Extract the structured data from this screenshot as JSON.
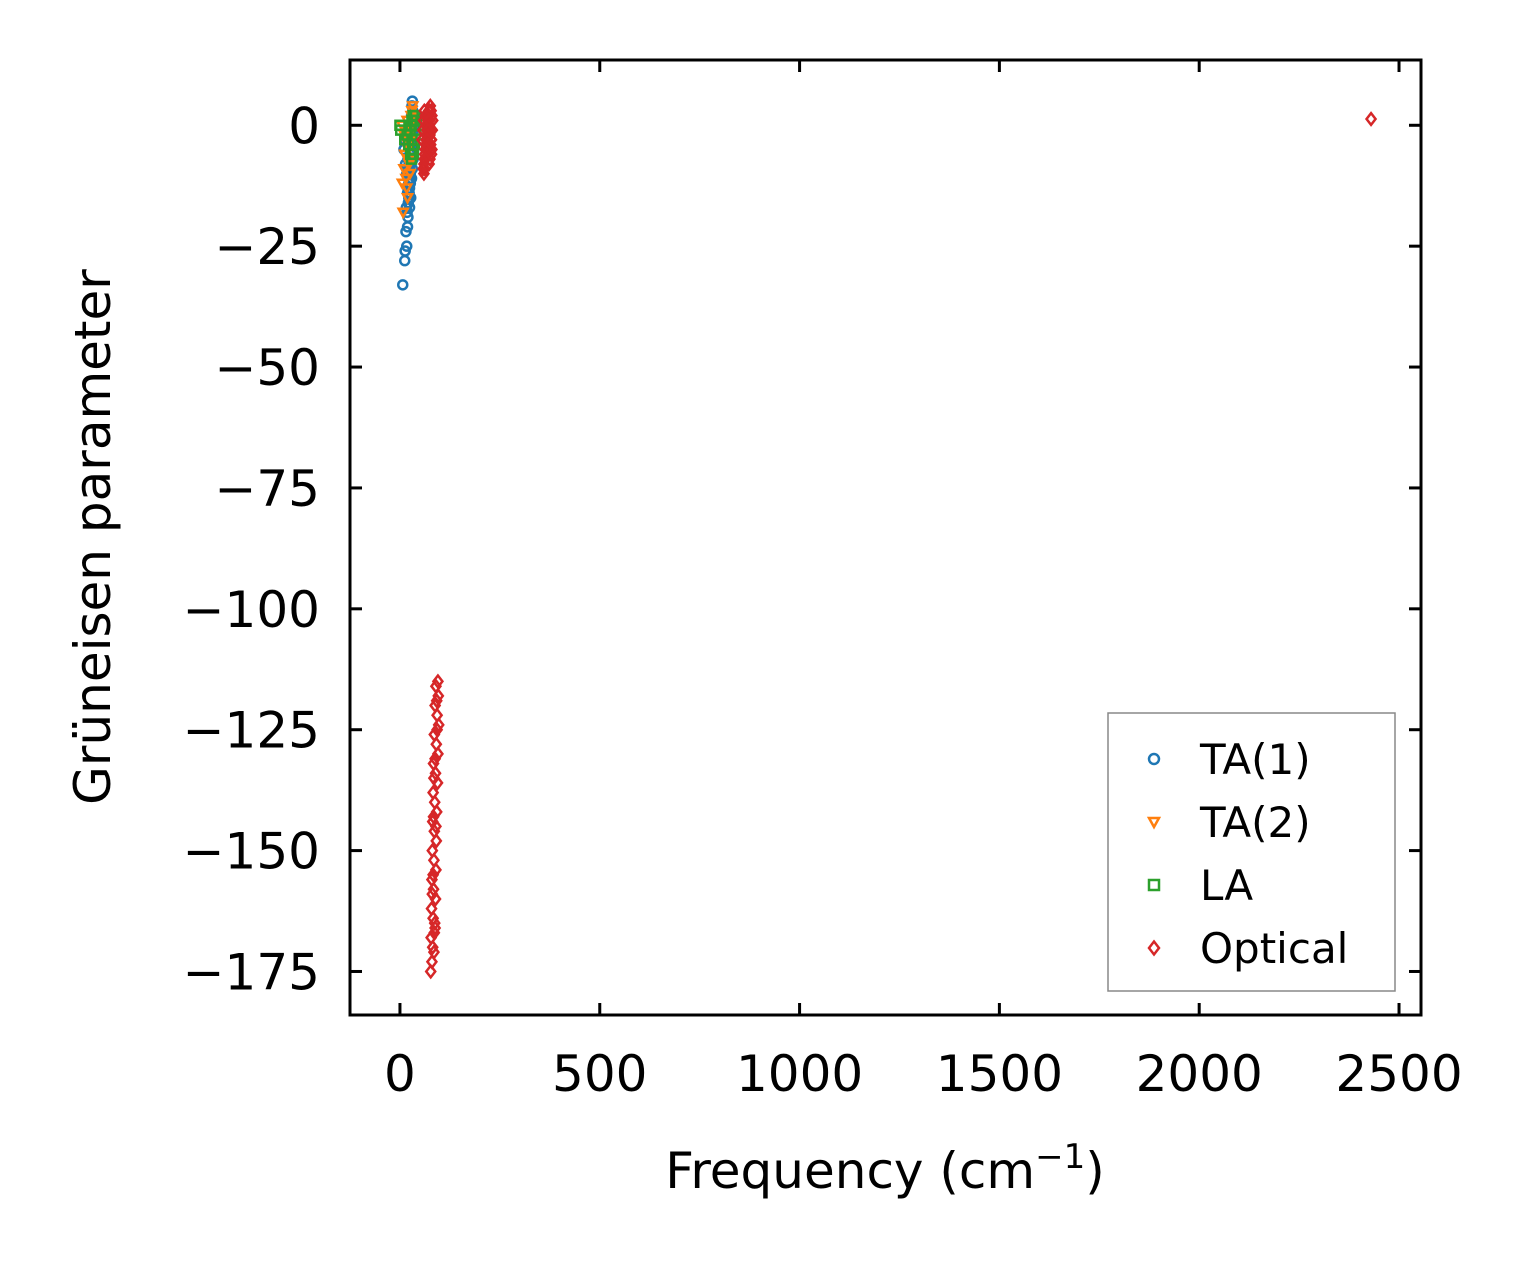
{
  "chart_data": {
    "type": "scatter",
    "title": "",
    "xlabel": "Frequency (cm",
    "xlabel_sup": "−1",
    "xlabel_close": ")",
    "ylabel": "Grüneisen parameter",
    "xlim": [
      -125,
      2555
    ],
    "ylim": [
      -184,
      13.5
    ],
    "xticks": [
      0,
      500,
      1000,
      1500,
      2000,
      2500
    ],
    "xtick_labels": [
      "0",
      "500",
      "1000",
      "1500",
      "2000",
      "2500"
    ],
    "yticks": [
      0,
      -25,
      -50,
      -75,
      -100,
      -125,
      -150,
      -175
    ],
    "ytick_labels": [
      "0",
      "−25",
      "−50",
      "−75",
      "−100",
      "−125",
      "−150",
      "−175"
    ],
    "grid": false,
    "legend_position": "bottom-right",
    "series": [
      {
        "name": "TA(1)",
        "marker": "circle",
        "color": "#1f77b4",
        "points": [
          [
            7,
            -33
          ],
          [
            12,
            -28
          ],
          [
            13,
            -26
          ],
          [
            17,
            -25
          ],
          [
            15,
            -22
          ],
          [
            19,
            -21
          ],
          [
            18,
            -18
          ],
          [
            21,
            -16
          ],
          [
            23,
            -14
          ],
          [
            22,
            -12
          ],
          [
            25,
            -11
          ],
          [
            24,
            -9
          ],
          [
            27,
            -8
          ],
          [
            26,
            -6
          ],
          [
            28,
            -5
          ],
          [
            25,
            -4
          ],
          [
            29,
            -3
          ],
          [
            27,
            -2
          ],
          [
            30,
            -1
          ],
          [
            28,
            0
          ],
          [
            31,
            1
          ],
          [
            29,
            2
          ],
          [
            32,
            3
          ],
          [
            30,
            4
          ],
          [
            31,
            5
          ],
          [
            20,
            -19
          ],
          [
            16,
            -17
          ],
          [
            22,
            -15
          ],
          [
            24,
            -13
          ],
          [
            26,
            -10
          ],
          [
            27,
            -7
          ],
          [
            29,
            -4
          ],
          [
            31,
            -2
          ],
          [
            23,
            -8
          ],
          [
            25,
            -6
          ],
          [
            28,
            -1
          ],
          [
            30,
            -3
          ],
          [
            26,
            -12
          ],
          [
            21,
            -10
          ],
          [
            19,
            -14
          ],
          [
            24,
            -17
          ],
          [
            27,
            -15
          ],
          [
            29,
            -11
          ],
          [
            31,
            -9
          ],
          [
            33,
            -7
          ],
          [
            32,
            -5
          ],
          [
            33,
            -1
          ],
          [
            34,
            2
          ],
          [
            10,
            -5
          ],
          [
            14,
            -8
          ],
          [
            17,
            -10
          ],
          [
            20,
            -7
          ],
          [
            22,
            -4
          ],
          [
            12,
            -3
          ],
          [
            18,
            -2
          ]
        ]
      },
      {
        "name": "TA(2)",
        "marker": "triangle-down",
        "color": "#ff7f0e",
        "points": [
          [
            5,
            0
          ],
          [
            6,
            -12
          ],
          [
            8,
            -18
          ],
          [
            10,
            -9
          ],
          [
            12,
            -6
          ],
          [
            14,
            -3
          ],
          [
            16,
            -1
          ],
          [
            18,
            1
          ],
          [
            20,
            -4
          ],
          [
            22,
            -7
          ],
          [
            24,
            -2
          ],
          [
            26,
            0
          ],
          [
            28,
            2
          ],
          [
            30,
            3
          ],
          [
            32,
            4
          ],
          [
            15,
            -11
          ],
          [
            17,
            -13
          ],
          [
            19,
            -15
          ],
          [
            21,
            -5
          ],
          [
            23,
            -8
          ],
          [
            25,
            -10
          ],
          [
            27,
            -3
          ],
          [
            29,
            -1
          ],
          [
            31,
            1
          ],
          [
            33,
            2
          ],
          [
            35,
            0
          ],
          [
            11,
            -2
          ]
        ]
      },
      {
        "name": "LA",
        "marker": "square",
        "color": "#2ca02c",
        "points": [
          [
            0,
            0
          ],
          [
            2,
            -1
          ],
          [
            12,
            -3
          ],
          [
            18,
            -2
          ],
          [
            22,
            -4
          ],
          [
            25,
            -1
          ],
          [
            28,
            0
          ],
          [
            30,
            1
          ],
          [
            33,
            2
          ],
          [
            35,
            1
          ],
          [
            37,
            0
          ],
          [
            38,
            -2
          ],
          [
            36,
            -4
          ],
          [
            34,
            -6
          ],
          [
            32,
            -5
          ],
          [
            30,
            -3
          ],
          [
            29,
            -7
          ],
          [
            27,
            -6
          ],
          [
            40,
            -1
          ],
          [
            41,
            1
          ],
          [
            39,
            2
          ]
        ]
      },
      {
        "name": "Optical",
        "marker": "diamond",
        "color": "#d62728",
        "points": [
          [
            2430,
            1.3
          ],
          [
            60,
            -8
          ],
          [
            62,
            -6
          ],
          [
            64,
            -4
          ],
          [
            66,
            -2
          ],
          [
            68,
            0
          ],
          [
            70,
            2
          ],
          [
            72,
            3
          ],
          [
            74,
            1
          ],
          [
            76,
            -1
          ],
          [
            78,
            -3
          ],
          [
            80,
            -5
          ],
          [
            58,
            -9
          ],
          [
            61,
            -7
          ],
          [
            63,
            -5
          ],
          [
            65,
            -3
          ],
          [
            67,
            -1
          ],
          [
            69,
            1
          ],
          [
            71,
            2
          ],
          [
            73,
            0
          ],
          [
            75,
            -2
          ],
          [
            77,
            -4
          ],
          [
            79,
            -6
          ],
          [
            55,
            -3
          ],
          [
            57,
            -1
          ],
          [
            59,
            1
          ],
          [
            61,
            3
          ],
          [
            63,
            2
          ],
          [
            65,
            0
          ],
          [
            67,
            -2
          ],
          [
            69,
            -4
          ],
          [
            71,
            -6
          ],
          [
            73,
            -8
          ],
          [
            75,
            -7
          ],
          [
            77,
            -5
          ],
          [
            79,
            -3
          ],
          [
            81,
            -1
          ],
          [
            82,
            1
          ],
          [
            80,
            2
          ],
          [
            78,
            3
          ],
          [
            76,
            4
          ],
          [
            74,
            3
          ],
          [
            72,
            1
          ],
          [
            70,
            -1
          ],
          [
            68,
            -3
          ],
          [
            66,
            -5
          ],
          [
            64,
            -7
          ],
          [
            62,
            -9
          ],
          [
            60,
            -10
          ],
          [
            95,
            -115
          ],
          [
            90,
            -116
          ],
          [
            96,
            -118
          ],
          [
            88,
            -120
          ],
          [
            93,
            -122
          ],
          [
            97,
            -124
          ],
          [
            86,
            -126
          ],
          [
            91,
            -128
          ],
          [
            95,
            -130
          ],
          [
            84,
            -132
          ],
          [
            89,
            -134
          ],
          [
            94,
            -136
          ],
          [
            83,
            -138
          ],
          [
            87,
            -140
          ],
          [
            92,
            -142
          ],
          [
            82,
            -144
          ],
          [
            86,
            -146
          ],
          [
            91,
            -148
          ],
          [
            81,
            -150
          ],
          [
            85,
            -152
          ],
          [
            90,
            -154
          ],
          [
            80,
            -156
          ],
          [
            84,
            -158
          ],
          [
            89,
            -160
          ],
          [
            79,
            -162
          ],
          [
            83,
            -164
          ],
          [
            88,
            -166
          ],
          [
            78,
            -168
          ],
          [
            82,
            -170
          ],
          [
            85,
            -171
          ],
          [
            80,
            -173
          ],
          [
            77,
            -175
          ],
          [
            93,
            -125
          ],
          [
            85,
            -135
          ],
          [
            90,
            -145
          ],
          [
            83,
            -155
          ],
          [
            87,
            -165
          ],
          [
            92,
            -119
          ],
          [
            88,
            -131
          ],
          [
            84,
            -143
          ],
          [
            81,
            -159
          ],
          [
            86,
            -167
          ]
        ]
      }
    ]
  }
}
